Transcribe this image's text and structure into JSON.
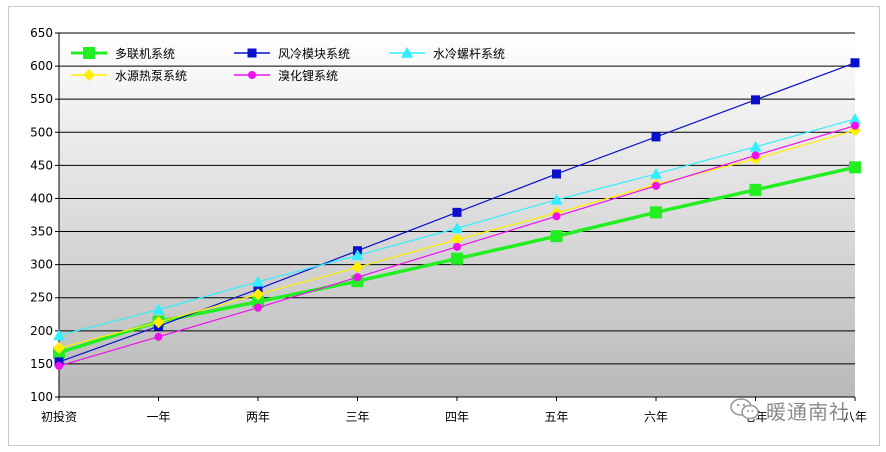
{
  "chart_data": {
    "type": "line",
    "categories": [
      "初投资",
      "一年",
      "两年",
      "三年",
      "四年",
      "五年",
      "六年",
      "七年",
      "八年"
    ],
    "ylim": [
      100,
      650
    ],
    "yticks": [
      100,
      150,
      200,
      250,
      300,
      350,
      400,
      450,
      500,
      550,
      600,
      650
    ],
    "grid": true,
    "legend_position": "top-left",
    "series": [
      {
        "name": "多联机系统",
        "color": "#22ee22",
        "marker": "square",
        "values": [
          167,
          214,
          244,
          275,
          309,
          343,
          379,
          413,
          447
        ]
      },
      {
        "name": "风冷模块系统",
        "color": "#0a10cc",
        "marker": "square",
        "values": [
          153,
          207,
          263,
          321,
          379,
          437,
          493,
          549,
          605
        ]
      },
      {
        "name": "水冷螺杆系统",
        "color": "#33eeff",
        "marker": "triangle",
        "values": [
          193,
          232,
          274,
          314,
          355,
          398,
          437,
          478,
          520
        ]
      },
      {
        "name": "水源热泵系统",
        "color": "#ffee00",
        "marker": "diamond",
        "values": [
          174,
          213,
          255,
          296,
          338,
          378,
          421,
          460,
          503
        ]
      },
      {
        "name": "溴化锂系统",
        "color": "#ee11ee",
        "marker": "circle",
        "values": [
          147,
          191,
          235,
          281,
          327,
          373,
          419,
          465,
          510
        ]
      }
    ]
  },
  "watermark": {
    "text": "暖通南社",
    "icon": "wechat-icon"
  }
}
